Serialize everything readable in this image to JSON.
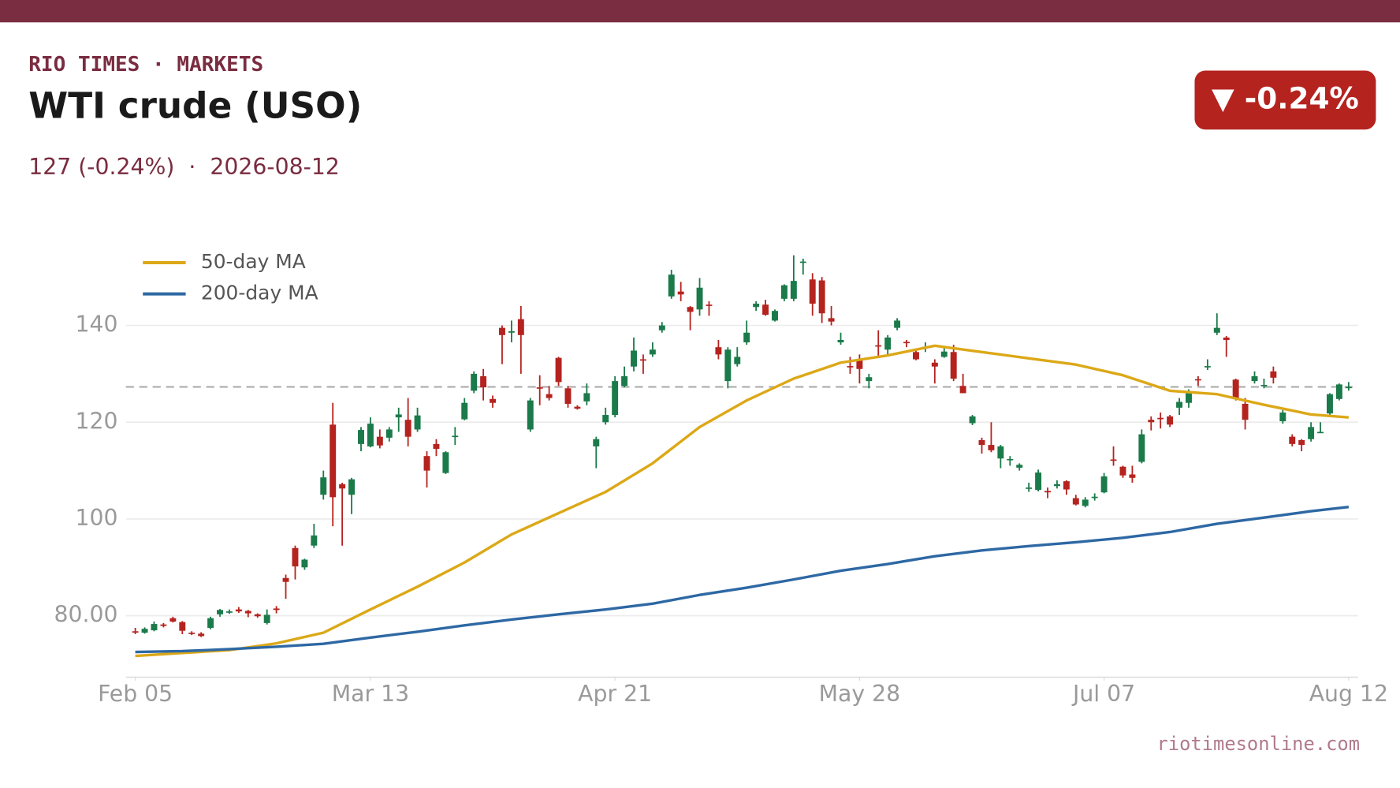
{
  "brand": "RIO TIMES · MARKETS",
  "title": "WTI crude (USO)",
  "subtitle": "127 (-0.24%)  ·  2026-08-12",
  "badge": "▼ -0.24%",
  "footer": "riotimesonline.com",
  "chart_data": {
    "type": "candlestick",
    "up_color": "#1b7a4a",
    "down_color": "#b5231f",
    "open": [
      76.8,
      76.5,
      77.0,
      78.2,
      79.5,
      78.7,
      76.5,
      76.3,
      77.5,
      80.3,
      80.8,
      81.3,
      81.0,
      80.3,
      78.5,
      81.5,
      87.8,
      94.0,
      90.0,
      94.5,
      105.0,
      119.5,
      107.2,
      105.0,
      115.5,
      115.0,
      117.0,
      116.8,
      121.0,
      120.5,
      118.5,
      113.0,
      115.5,
      109.5,
      117.0,
      120.6,
      126.5,
      129.5,
      124.8,
      139.5,
      138.5,
      141.3,
      118.5,
      127.2,
      125.8,
      133.3,
      127.0,
      123.2,
      124.3,
      115.0,
      120.0,
      121.5,
      127.5,
      131.5,
      133.0,
      134.0,
      139.0,
      146.0,
      147.0,
      143.8,
      143.3,
      144.3,
      135.5,
      128.5,
      132.0,
      136.5,
      143.8,
      144.3,
      141.0,
      145.5,
      145.5,
      153.0,
      149.5,
      149.3,
      141.5,
      136.5,
      131.6,
      133.0,
      128.5,
      135.9,
      135.0,
      139.5,
      136.6,
      134.5,
      135.5,
      132.3,
      133.5,
      134.5,
      127.5,
      119.8,
      116.3,
      115.3,
      112.5,
      112.2,
      110.6,
      106.3,
      106.0,
      105.8,
      106.8,
      107.8,
      104.3,
      102.7,
      104.4,
      105.5,
      112.3,
      110.8,
      109.2,
      111.8,
      120.5,
      120.9,
      121.2,
      123.0,
      124.0,
      128.9,
      131.4,
      138.5,
      137.5,
      128.8,
      123.8,
      128.5,
      127.5,
      130.5,
      120.2,
      117.0,
      116.3,
      116.5,
      117.9,
      121.8,
      124.8,
      127.1
    ],
    "high": [
      77.5,
      77.6,
      78.8,
      78.5,
      79.8,
      78.9,
      76.8,
      76.6,
      79.8,
      81.4,
      81.3,
      81.8,
      81.2,
      80.5,
      81.3,
      82.0,
      88.5,
      94.5,
      91.8,
      99.0,
      110.0,
      124.0,
      107.5,
      108.5,
      119.0,
      121.0,
      118.5,
      119.0,
      123.0,
      125.0,
      123.0,
      114.0,
      116.5,
      114.0,
      119.0,
      125.0,
      130.5,
      131.0,
      125.5,
      140.0,
      141.0,
      144.0,
      125.0,
      129.7,
      127.5,
      133.5,
      127.5,
      123.5,
      128.0,
      117.0,
      123.0,
      129.5,
      131.5,
      137.5,
      134.0,
      136.5,
      140.7,
      151.5,
      149.0,
      144.0,
      149.8,
      145.0,
      137.0,
      135.5,
      135.5,
      141.0,
      145.0,
      145.3,
      143.3,
      148.5,
      154.5,
      153.8,
      150.8,
      150.0,
      144.0,
      138.5,
      133.5,
      134.0,
      130.0,
      139.0,
      138.0,
      141.5,
      137.0,
      135.0,
      136.5,
      133.0,
      135.6,
      136.0,
      130.0,
      121.5,
      116.8,
      120.0,
      115.3,
      113.0,
      111.5,
      107.5,
      110.2,
      106.5,
      108.0,
      108.0,
      105.0,
      104.5,
      105.3,
      109.5,
      115.0,
      111.0,
      111.0,
      118.5,
      121.2,
      122.0,
      121.5,
      125.0,
      126.8,
      129.5,
      133.0,
      142.5,
      137.8,
      129.0,
      125.0,
      130.5,
      129.0,
      131.5,
      122.5,
      117.5,
      116.5,
      120.0,
      120.0,
      126.0,
      128.0,
      128.3
    ],
    "low": [
      76.2,
      76.3,
      76.8,
      77.6,
      78.6,
      76.2,
      76.0,
      75.6,
      77.2,
      79.8,
      80.4,
      80.6,
      79.7,
      79.6,
      78.2,
      80.5,
      83.5,
      87.5,
      89.5,
      94.0,
      104.0,
      98.5,
      94.5,
      101.0,
      114.0,
      114.8,
      114.6,
      116.0,
      118.0,
      115.0,
      118.0,
      106.5,
      113.0,
      109.3,
      115.3,
      120.4,
      126.0,
      124.5,
      123.0,
      132.0,
      136.5,
      130.0,
      118.0,
      123.5,
      124.5,
      127.5,
      123.0,
      122.6,
      123.5,
      110.5,
      119.5,
      121.0,
      127.2,
      130.5,
      130.0,
      133.5,
      138.5,
      145.5,
      145.0,
      139.0,
      142.0,
      142.0,
      133.0,
      127.0,
      131.5,
      136.0,
      143.0,
      142.0,
      140.8,
      145.0,
      145.0,
      150.5,
      142.0,
      140.5,
      140.0,
      136.0,
      130.0,
      128.0,
      127.0,
      133.5,
      134.0,
      139.0,
      135.5,
      132.8,
      134.5,
      128.0,
      133.3,
      128.5,
      126.0,
      119.4,
      113.5,
      113.8,
      110.5,
      111.0,
      110.0,
      105.6,
      105.7,
      104.3,
      106.3,
      105.0,
      102.8,
      102.4,
      103.8,
      105.3,
      111.0,
      108.5,
      107.5,
      111.5,
      118.3,
      118.7,
      119.0,
      121.5,
      123.0,
      127.5,
      130.8,
      138.0,
      133.5,
      124.5,
      118.5,
      128.0,
      127.0,
      128.0,
      119.7,
      115.0,
      114.0,
      116.0,
      117.8,
      121.5,
      124.5,
      126.5
    ],
    "close": [
      76.6,
      77.3,
      78.3,
      77.9,
      78.8,
      76.9,
      76.3,
      75.8,
      79.5,
      81.2,
      80.9,
      80.9,
      80.5,
      79.9,
      80.2,
      81.2,
      87.0,
      90.2,
      91.6,
      96.6,
      108.6,
      104.5,
      106.3,
      108.2,
      118.4,
      119.7,
      115.2,
      118.5,
      121.6,
      117.0,
      121.4,
      110.0,
      114.5,
      113.8,
      117.2,
      124.0,
      130.0,
      127.2,
      124.0,
      138.0,
      138.8,
      138.0,
      124.5,
      127.0,
      125.0,
      128.3,
      123.8,
      122.8,
      126.0,
      116.5,
      121.5,
      128.5,
      129.5,
      134.8,
      132.8,
      135.0,
      140.0,
      150.5,
      146.4,
      142.8,
      147.8,
      144.1,
      134.0,
      135.0,
      133.5,
      138.5,
      144.5,
      142.2,
      143.0,
      148.3,
      149.2,
      153.2,
      144.5,
      142.5,
      140.8,
      137.0,
      131.4,
      131.0,
      129.3,
      135.7,
      137.5,
      141.0,
      136.4,
      133.0,
      135.6,
      131.5,
      134.6,
      129.0,
      126.0,
      121.2,
      115.3,
      114.2,
      115.0,
      112.4,
      111.2,
      106.5,
      109.6,
      105.5,
      107.2,
      106.1,
      103.0,
      104.0,
      104.6,
      108.8,
      112.1,
      109.0,
      108.5,
      117.5,
      120.0,
      120.7,
      119.5,
      124.2,
      126.0,
      128.7,
      131.6,
      139.5,
      137.0,
      125.0,
      120.5,
      129.5,
      127.7,
      129.2,
      122.0,
      115.5,
      115.3,
      119.0,
      118.0,
      125.8,
      127.8,
      127.3
    ],
    "series": [
      {
        "name": "50-day MA",
        "color": "#dca817",
        "x": [
          0,
          5,
          10,
          15,
          20,
          25,
          30,
          35,
          40,
          45,
          50,
          55,
          60,
          65,
          70,
          75,
          80,
          85,
          90,
          95,
          100,
          105,
          110,
          115,
          120,
          125,
          129
        ],
        "values": [
          71.7,
          72.3,
          72.9,
          74.3,
          76.5,
          81.3,
          86,
          91,
          96.8,
          101.2,
          105.6,
          111.5,
          119,
          124.5,
          129,
          132.3,
          133.8,
          135.8,
          134.5,
          133.2,
          131.9,
          129.7,
          126.5,
          125.8,
          123.6,
          121.6,
          121.0
        ]
      },
      {
        "name": "200-day MA",
        "color": "#2e68a4",
        "x": [
          0,
          5,
          10,
          15,
          20,
          25,
          30,
          35,
          40,
          45,
          50,
          55,
          60,
          65,
          70,
          75,
          80,
          85,
          90,
          95,
          100,
          105,
          110,
          115,
          120,
          125,
          129
        ],
        "values": [
          72.5,
          72.7,
          73.1,
          73.6,
          74.2,
          75.5,
          76.7,
          78,
          79.2,
          80.3,
          81.3,
          82.5,
          84.3,
          85.8,
          87.5,
          89.3,
          90.7,
          92.3,
          93.5,
          94.4,
          95.2,
          96.1,
          97.3,
          99,
          100.3,
          101.6,
          102.5
        ]
      }
    ],
    "xlim": [
      -1,
      130
    ],
    "xticks": [
      {
        "value": 0,
        "label": "Feb 05"
      },
      {
        "value": 25,
        "label": "Mar 13"
      },
      {
        "value": 51,
        "label": "Apr 21"
      },
      {
        "value": 77,
        "label": "May 28"
      },
      {
        "value": 103,
        "label": "Jul 07"
      },
      {
        "value": 129,
        "label": "Aug 12"
      }
    ],
    "ylim": [
      67.3,
      155
    ],
    "yticks": [
      {
        "value": 80,
        "label": "80.00"
      },
      100,
      120,
      140
    ],
    "grid": true,
    "legend": "top-left"
  }
}
